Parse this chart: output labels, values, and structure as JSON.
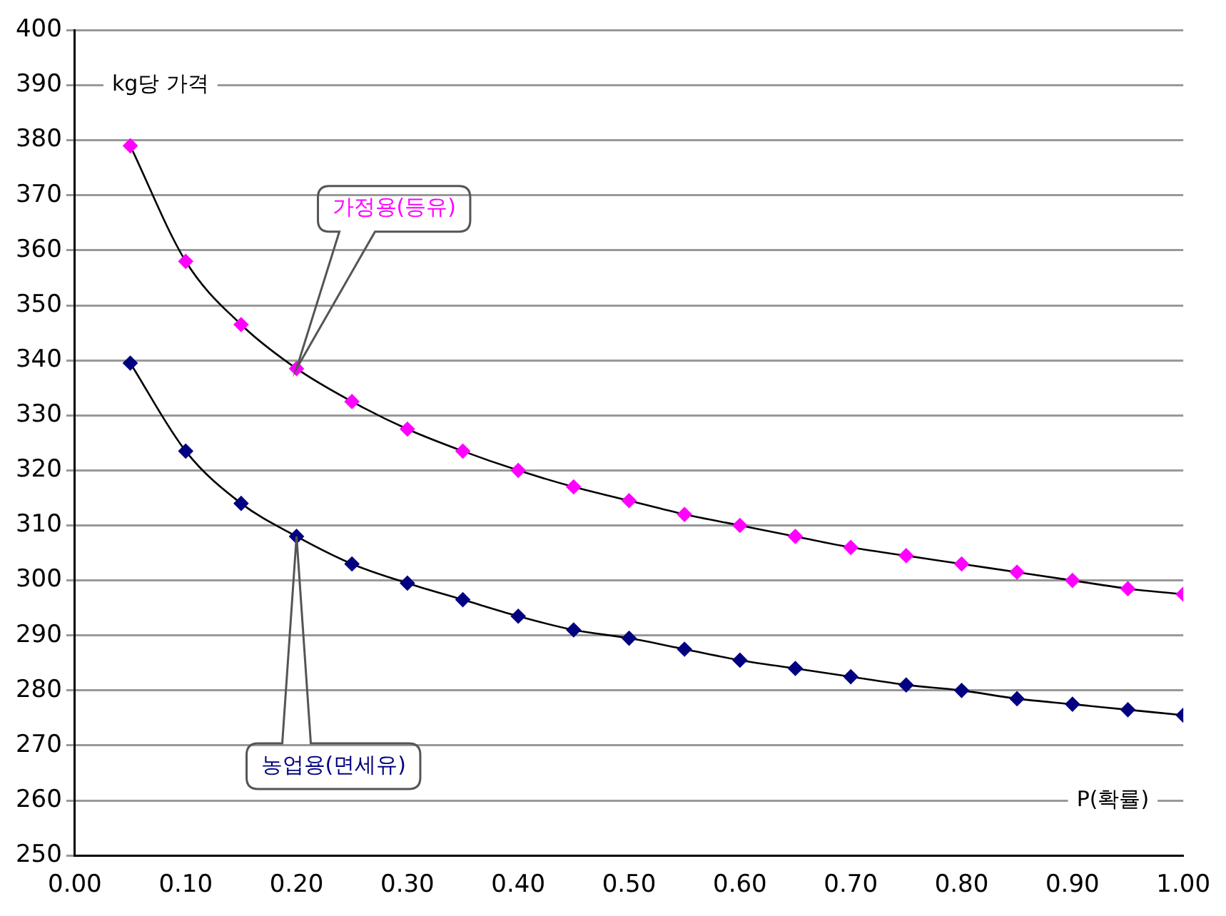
{
  "chart_data": {
    "type": "line",
    "ylabel": "kg당 가격",
    "xlabel": "P(확률)",
    "x": [
      0.05,
      0.1,
      0.15,
      0.2,
      0.25,
      0.3,
      0.35,
      0.4,
      0.45,
      0.5,
      0.55,
      0.6,
      0.65,
      0.7,
      0.75,
      0.8,
      0.85,
      0.9,
      0.95,
      1.0
    ],
    "series": [
      {
        "name": "가정용(등유)",
        "color": "#ff00ff",
        "values": [
          379,
          358,
          346.5,
          338.5,
          332.5,
          327.5,
          323.5,
          320,
          317,
          314.5,
          312,
          310,
          308,
          306,
          304.5,
          303,
          301.5,
          300,
          298.5,
          297.5
        ]
      },
      {
        "name": "농업용(면세유)",
        "color": "#000080",
        "values": [
          339.5,
          323.5,
          314,
          308,
          303,
          299.5,
          296.5,
          293.5,
          291,
          289.5,
          287.5,
          285.5,
          284,
          282.5,
          281,
          280,
          278.5,
          277.5,
          276.5,
          275.5
        ]
      }
    ],
    "xlim": [
      0,
      1
    ],
    "xticks": [
      {
        "value": 0,
        "label": "0.00"
      },
      {
        "value": 0.1,
        "label": "0.10"
      },
      {
        "value": 0.2,
        "label": "0.20"
      },
      {
        "value": 0.3,
        "label": "0.30"
      },
      {
        "value": 0.4,
        "label": "0.40"
      },
      {
        "value": 0.5,
        "label": "0.50"
      },
      {
        "value": 0.6,
        "label": "0.60"
      },
      {
        "value": 0.7,
        "label": "0.70"
      },
      {
        "value": 0.8,
        "label": "0.80"
      },
      {
        "value": 0.9,
        "label": "0.90"
      },
      {
        "value": 1,
        "label": "1.00"
      }
    ],
    "ylim": [
      250,
      400
    ],
    "yticks": [
      250,
      260,
      270,
      280,
      290,
      300,
      310,
      320,
      330,
      340,
      350,
      360,
      370,
      380,
      390,
      400
    ],
    "grid": "y",
    "marker": "diamond",
    "line_style": "solid",
    "legend": false
  }
}
